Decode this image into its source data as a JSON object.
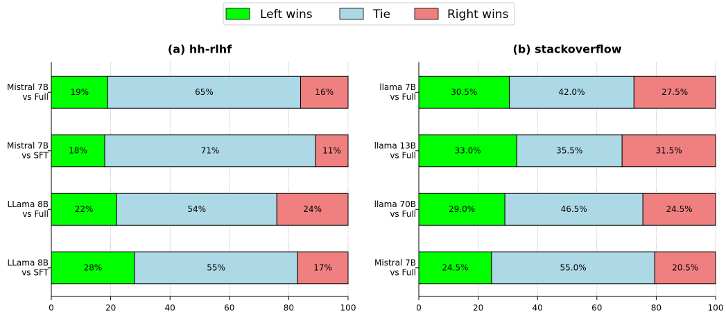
{
  "chart_data": [
    {
      "type": "stacked-barh",
      "title": "(a) hh-rlhf",
      "categories": [
        [
          "Mistral 7B",
          "vs Full"
        ],
        [
          "Mistral 7B",
          "vs SFT"
        ],
        [
          "LLama 8B",
          "vs Full"
        ],
        [
          "LLama 8B",
          "vs SFT"
        ]
      ],
      "series": [
        {
          "name": "Left wins",
          "color": "#00ff00",
          "values": [
            19,
            18,
            22,
            28
          ],
          "value_labels": [
            "19%",
            "18%",
            "22%",
            "28%"
          ]
        },
        {
          "name": "Tie",
          "color": "#add8e6",
          "values": [
            65,
            71,
            54,
            55
          ],
          "value_labels": [
            "65%",
            "71%",
            "54%",
            "55%"
          ]
        },
        {
          "name": "Right wins",
          "color": "#f08080",
          "values": [
            16,
            11,
            24,
            17
          ],
          "value_labels": [
            "16%",
            "11%",
            "24%",
            "17%"
          ]
        }
      ],
      "xlim": [
        0,
        100
      ],
      "xticks": [
        0,
        20,
        40,
        60,
        80,
        100
      ],
      "grid": true
    },
    {
      "type": "stacked-barh",
      "title": "(b) stackoverflow",
      "categories": [
        [
          "llama 7B",
          "vs Full"
        ],
        [
          "llama 13B",
          "vs Full"
        ],
        [
          "llama 70B",
          "vs Full"
        ],
        [
          "Mistral 7B",
          "vs Full"
        ]
      ],
      "series": [
        {
          "color": "#00ff00",
          "values": [
            30.5,
            33.0,
            29.0,
            24.5
          ],
          "value_labels": [
            "30.5%",
            "33.0%",
            "29.0%",
            "24.5%"
          ]
        },
        {
          "color": "#add8e6",
          "values": [
            42.0,
            35.5,
            46.5,
            55.0
          ],
          "value_labels": [
            "42.0%",
            "35.5%",
            "46.5%",
            "55.0%"
          ]
        },
        {
          "color": "#f08080",
          "values": [
            27.5,
            31.5,
            24.5,
            20.5
          ],
          "value_labels": [
            "27.5%",
            "31.5%",
            "24.5%",
            "20.5%"
          ]
        }
      ],
      "xlim": [
        0,
        100
      ],
      "xticks": [
        0,
        20,
        40,
        60,
        80,
        100
      ],
      "grid": true
    }
  ]
}
